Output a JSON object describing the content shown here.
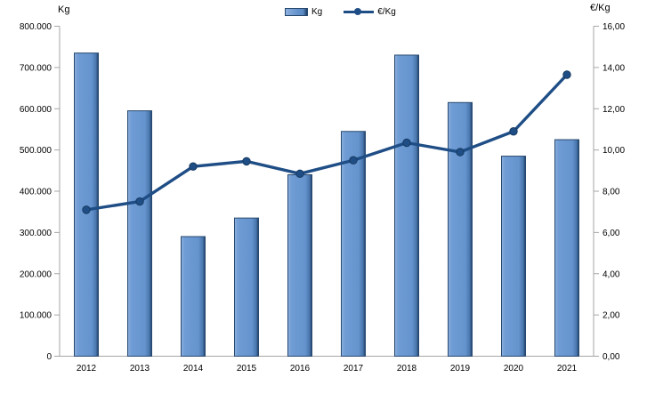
{
  "axes": {
    "left_title": "Kg",
    "right_title": "€/Kg"
  },
  "legend": {
    "kg_label": "Kg",
    "eur_label": "€/Kg"
  },
  "colors": {
    "bar_fill": "#6593cd",
    "bar_fill_light": "#8db0de",
    "bar_fill_dark": "#1d3d66",
    "bar_border": "#27496f",
    "line": "#1f4e86",
    "marker_border": "#16395f",
    "axis_line": "#a6a6a6",
    "label_text": "#000000"
  },
  "chart_data": {
    "type": "bar+line",
    "categories": [
      "2012",
      "2013",
      "2014",
      "2015",
      "2016",
      "2017",
      "2018",
      "2019",
      "2020",
      "2021"
    ],
    "series": [
      {
        "name": "Kg",
        "type": "bar",
        "axis": "left",
        "values": [
          735000,
          595000,
          290000,
          335000,
          440000,
          545000,
          730000,
          615000,
          485000,
          525000
        ]
      },
      {
        "name": "€/Kg",
        "type": "line",
        "axis": "right",
        "values": [
          7.1,
          7.5,
          9.2,
          9.45,
          8.85,
          9.5,
          10.35,
          9.9,
          10.9,
          13.65
        ]
      }
    ],
    "left_axis": {
      "title": "Kg",
      "min": 0,
      "max": 800000,
      "step": 100000,
      "tick_labels": [
        "0",
        "100.000",
        "200.000",
        "300.000",
        "400.000",
        "500.000",
        "600.000",
        "700.000",
        "800.000"
      ]
    },
    "right_axis": {
      "title": "€/Kg",
      "min": 0,
      "max": 16,
      "step": 2,
      "tick_labels": [
        "0,00",
        "2,00",
        "4,00",
        "6,00",
        "8,00",
        "10,00",
        "12,00",
        "14,00",
        "16,00"
      ]
    },
    "grid": false,
    "legend_position": "top-center",
    "title": ""
  }
}
